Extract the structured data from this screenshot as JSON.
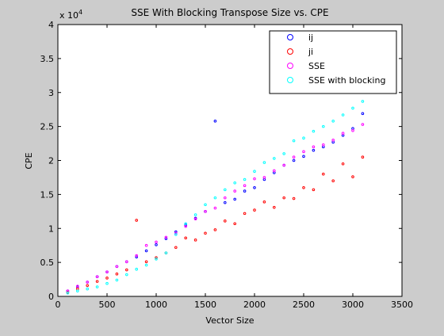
{
  "chart_data": {
    "type": "scatter",
    "title": "SSE With Blocking Transpose Size vs. CPE",
    "xlabel": "Vector Size",
    "ylabel": "CPE",
    "xlim": [
      0,
      3500
    ],
    "ylim": [
      0,
      40000
    ],
    "x_ticks": [
      0,
      500,
      1000,
      1500,
      2000,
      2500,
      3000,
      3500
    ],
    "y_ticks": [
      0,
      0.5,
      1,
      1.5,
      2,
      2.5,
      3,
      3.5,
      4
    ],
    "y_tick_labels": [
      "0",
      "0.5",
      "1",
      "1.5",
      "2",
      "2.5",
      "3",
      "3.5",
      "4"
    ],
    "y_multiplier_base": "x 10",
    "y_multiplier_exp": "4",
    "legend_position": "top-right",
    "grid": false,
    "series": [
      {
        "name": "ij",
        "color": "#0000ff",
        "x": [
          100,
          200,
          300,
          400,
          500,
          600,
          700,
          800,
          900,
          1000,
          1100,
          1200,
          1300,
          1400,
          1500,
          1600,
          1700,
          1800,
          1900,
          2000,
          2100,
          2200,
          2300,
          2400,
          2500,
          2600,
          2700,
          2800,
          2900,
          3000,
          3100
        ],
        "y": [
          800,
          1400,
          2100,
          2900,
          3600,
          4400,
          5100,
          5800,
          6700,
          7600,
          8500,
          9500,
          10500,
          11500,
          12500,
          25800,
          13800,
          14300,
          15500,
          16000,
          17200,
          18200,
          19300,
          20000,
          20600,
          21500,
          22000,
          22700,
          23700,
          24700,
          26900
        ]
      },
      {
        "name": "ji",
        "color": "#ff0000",
        "x": [
          100,
          200,
          300,
          400,
          500,
          600,
          700,
          800,
          900,
          1000,
          1100,
          1200,
          1300,
          1400,
          1500,
          1600,
          1700,
          1800,
          1900,
          2000,
          2100,
          2200,
          2300,
          2400,
          2500,
          2600,
          2700,
          2800,
          2900,
          3000,
          3100
        ],
        "y": [
          600,
          1100,
          1600,
          2200,
          2700,
          3300,
          3900,
          11200,
          5100,
          5700,
          6400,
          7200,
          8600,
          8300,
          9300,
          9800,
          11100,
          10700,
          12200,
          12700,
          13900,
          13100,
          14500,
          14400,
          16000,
          15700,
          18000,
          17000,
          19500,
          17600,
          20500
        ]
      },
      {
        "name": "SSE",
        "color": "#ff00ff",
        "x": [
          100,
          200,
          300,
          400,
          500,
          600,
          700,
          800,
          900,
          1000,
          1100,
          1200,
          1300,
          1400,
          1500,
          1600,
          1700,
          1800,
          1900,
          2000,
          2100,
          2200,
          2300,
          2400,
          2500,
          2600,
          2700,
          2800,
          2900,
          3000,
          3100
        ],
        "y": [
          800,
          1500,
          2100,
          2900,
          3600,
          4400,
          5100,
          6000,
          7500,
          8000,
          8700,
          9300,
          10300,
          11400,
          12500,
          13000,
          14500,
          15500,
          16300,
          17300,
          17500,
          18500,
          19300,
          20500,
          21300,
          22000,
          22300,
          23000,
          24000,
          24400,
          25300
        ]
      },
      {
        "name": "SSE with blocking",
        "color": "#00ffff",
        "x": [
          100,
          200,
          300,
          400,
          500,
          600,
          700,
          800,
          900,
          1000,
          1100,
          1200,
          1300,
          1400,
          1500,
          1600,
          1700,
          1800,
          1900,
          2000,
          2100,
          2200,
          2300,
          2400,
          2500,
          2600,
          2700,
          2800,
          2900,
          3000,
          3100
        ],
        "y": [
          500,
          800,
          1100,
          1400,
          1900,
          2400,
          3200,
          4000,
          4600,
          5500,
          6400,
          9100,
          10700,
          12000,
          13500,
          14500,
          15700,
          16700,
          17200,
          18400,
          19700,
          20300,
          21000,
          22900,
          23300,
          24300,
          25000,
          25800,
          26700,
          27700,
          28700
        ]
      }
    ]
  }
}
